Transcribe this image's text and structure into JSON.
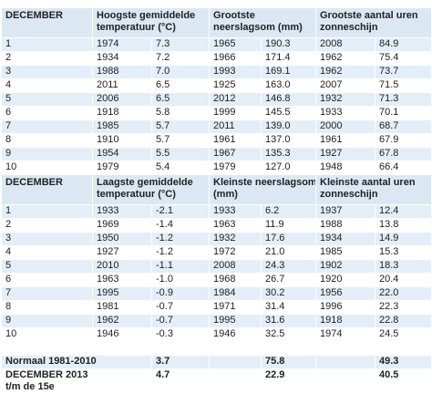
{
  "top": {
    "header": [
      "DECEMBER",
      "Hoogste gemiddelde temperatuur (°C)",
      "Grootste neerslagsom (mm)",
      "Grootste aantal uren zonneschijn"
    ],
    "rows": [
      [
        "1",
        "1974",
        "7.3",
        "1965",
        "190.3",
        "2008",
        "84.9"
      ],
      [
        "2",
        "1934",
        "7.2",
        "1966",
        "171.4",
        "1962",
        "75.4"
      ],
      [
        "3",
        "1988",
        "7.0",
        "1993",
        "169.1",
        "1962",
        "73.7"
      ],
      [
        "4",
        "2011",
        "6.5",
        "1925",
        "163.0",
        "2007",
        "71.5"
      ],
      [
        "5",
        "2006",
        "6.5",
        "2012",
        "146.8",
        "1932",
        "71.3"
      ],
      [
        "6",
        "1918",
        "5.8",
        "1999",
        "145.5",
        "1933",
        "70.1"
      ],
      [
        "7",
        "1985",
        "5.7",
        "2011",
        "139.0",
        "2000",
        "68.7"
      ],
      [
        "8",
        "1910",
        "5.7",
        "1961",
        "137.0",
        "1961",
        "67.9"
      ],
      [
        "9",
        "1954",
        "5.5",
        "1967",
        "135.3",
        "1927",
        "67.8"
      ],
      [
        "10",
        "1979",
        "5.4",
        "1979",
        "127.0",
        "1948",
        "66.4"
      ]
    ]
  },
  "bottom": {
    "header": [
      "DECEMBER",
      "Laagste gemiddelde temperatuur (°C)",
      "Kleinste neerslagsom (mm)",
      "Kleinste aantal uren zonneschijn"
    ],
    "rows": [
      [
        "1",
        "1933",
        "-2.1",
        "1933",
        "6.2",
        "1937",
        "12.4"
      ],
      [
        "2",
        "1969",
        "-1.4",
        "1963",
        "11.9",
        "1988",
        "13.8"
      ],
      [
        "3",
        "1950",
        "-1.2",
        "1932",
        "17.6",
        "1934",
        "14.9"
      ],
      [
        "4",
        "1927",
        "-1.2",
        "1972",
        "21.0",
        "1985",
        "15.3"
      ],
      [
        "5",
        "2010",
        "-1.1",
        "2008",
        "24.3",
        "1902",
        "18.3"
      ],
      [
        "6",
        "1963",
        "-1.0",
        "1968",
        "26.7",
        "1920",
        "20.4"
      ],
      [
        "7",
        "1995",
        "-0.9",
        "1984",
        "30.2",
        "1956",
        "22.0"
      ],
      [
        "8",
        "1981",
        "-0.7",
        "1971",
        "31.4",
        "1996",
        "22.3"
      ],
      [
        "9",
        "1962",
        "-0.7",
        "1995",
        "31.6",
        "1918",
        "22.8"
      ],
      [
        "10",
        "1946",
        "-0.3",
        "1946",
        "32.5",
        "1974",
        "24.5"
      ]
    ]
  },
  "footer": {
    "rows": [
      {
        "label": "Normaal 1981-2010",
        "values": [
          "3.7",
          "75.8",
          "49.3"
        ]
      },
      {
        "label": "DECEMBER 2013",
        "sublabel": "t/m de 15e",
        "values": [
          "4.7",
          "22.9",
          "40.5"
        ]
      }
    ]
  }
}
